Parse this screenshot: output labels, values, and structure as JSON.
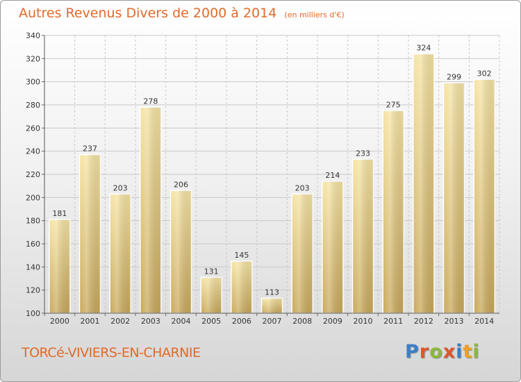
{
  "title": "Autres Revenus Divers de 2000 à 2014",
  "unit_note": "(en milliers d'€)",
  "commune": "TORCé-VIVIERS-EN-CHARNIE",
  "logo": {
    "text": "Proxiti",
    "letter_colors": [
      "#3a7fc8",
      "#e0552a",
      "#8bb93a",
      "#e0552a",
      "#3a7fc8",
      "#f0a020",
      "#8bb93a"
    ]
  },
  "colors": {
    "bar_light": "#f6e4a4",
    "bar_dark": "#c8a85a",
    "title": "#e06a2a",
    "grid": "#c8c8c8",
    "axis_text": "#333333"
  },
  "chart_data": {
    "type": "bar",
    "categories": [
      "2000",
      "2001",
      "2002",
      "2003",
      "2004",
      "2005",
      "2006",
      "2007",
      "2008",
      "2009",
      "2010",
      "2011",
      "2012",
      "2013",
      "2014"
    ],
    "values": [
      181,
      237,
      203,
      278,
      206,
      131,
      145,
      113,
      203,
      214,
      233,
      275,
      324,
      299,
      302
    ],
    "title": "Autres Revenus Divers de 2000 à 2014",
    "xlabel": "",
    "ylabel": "",
    "ylim": [
      100,
      340
    ],
    "yticks": [
      100,
      120,
      140,
      160,
      180,
      200,
      220,
      240,
      260,
      280,
      300,
      320,
      340
    ],
    "grid": true,
    "data_labels": true
  }
}
